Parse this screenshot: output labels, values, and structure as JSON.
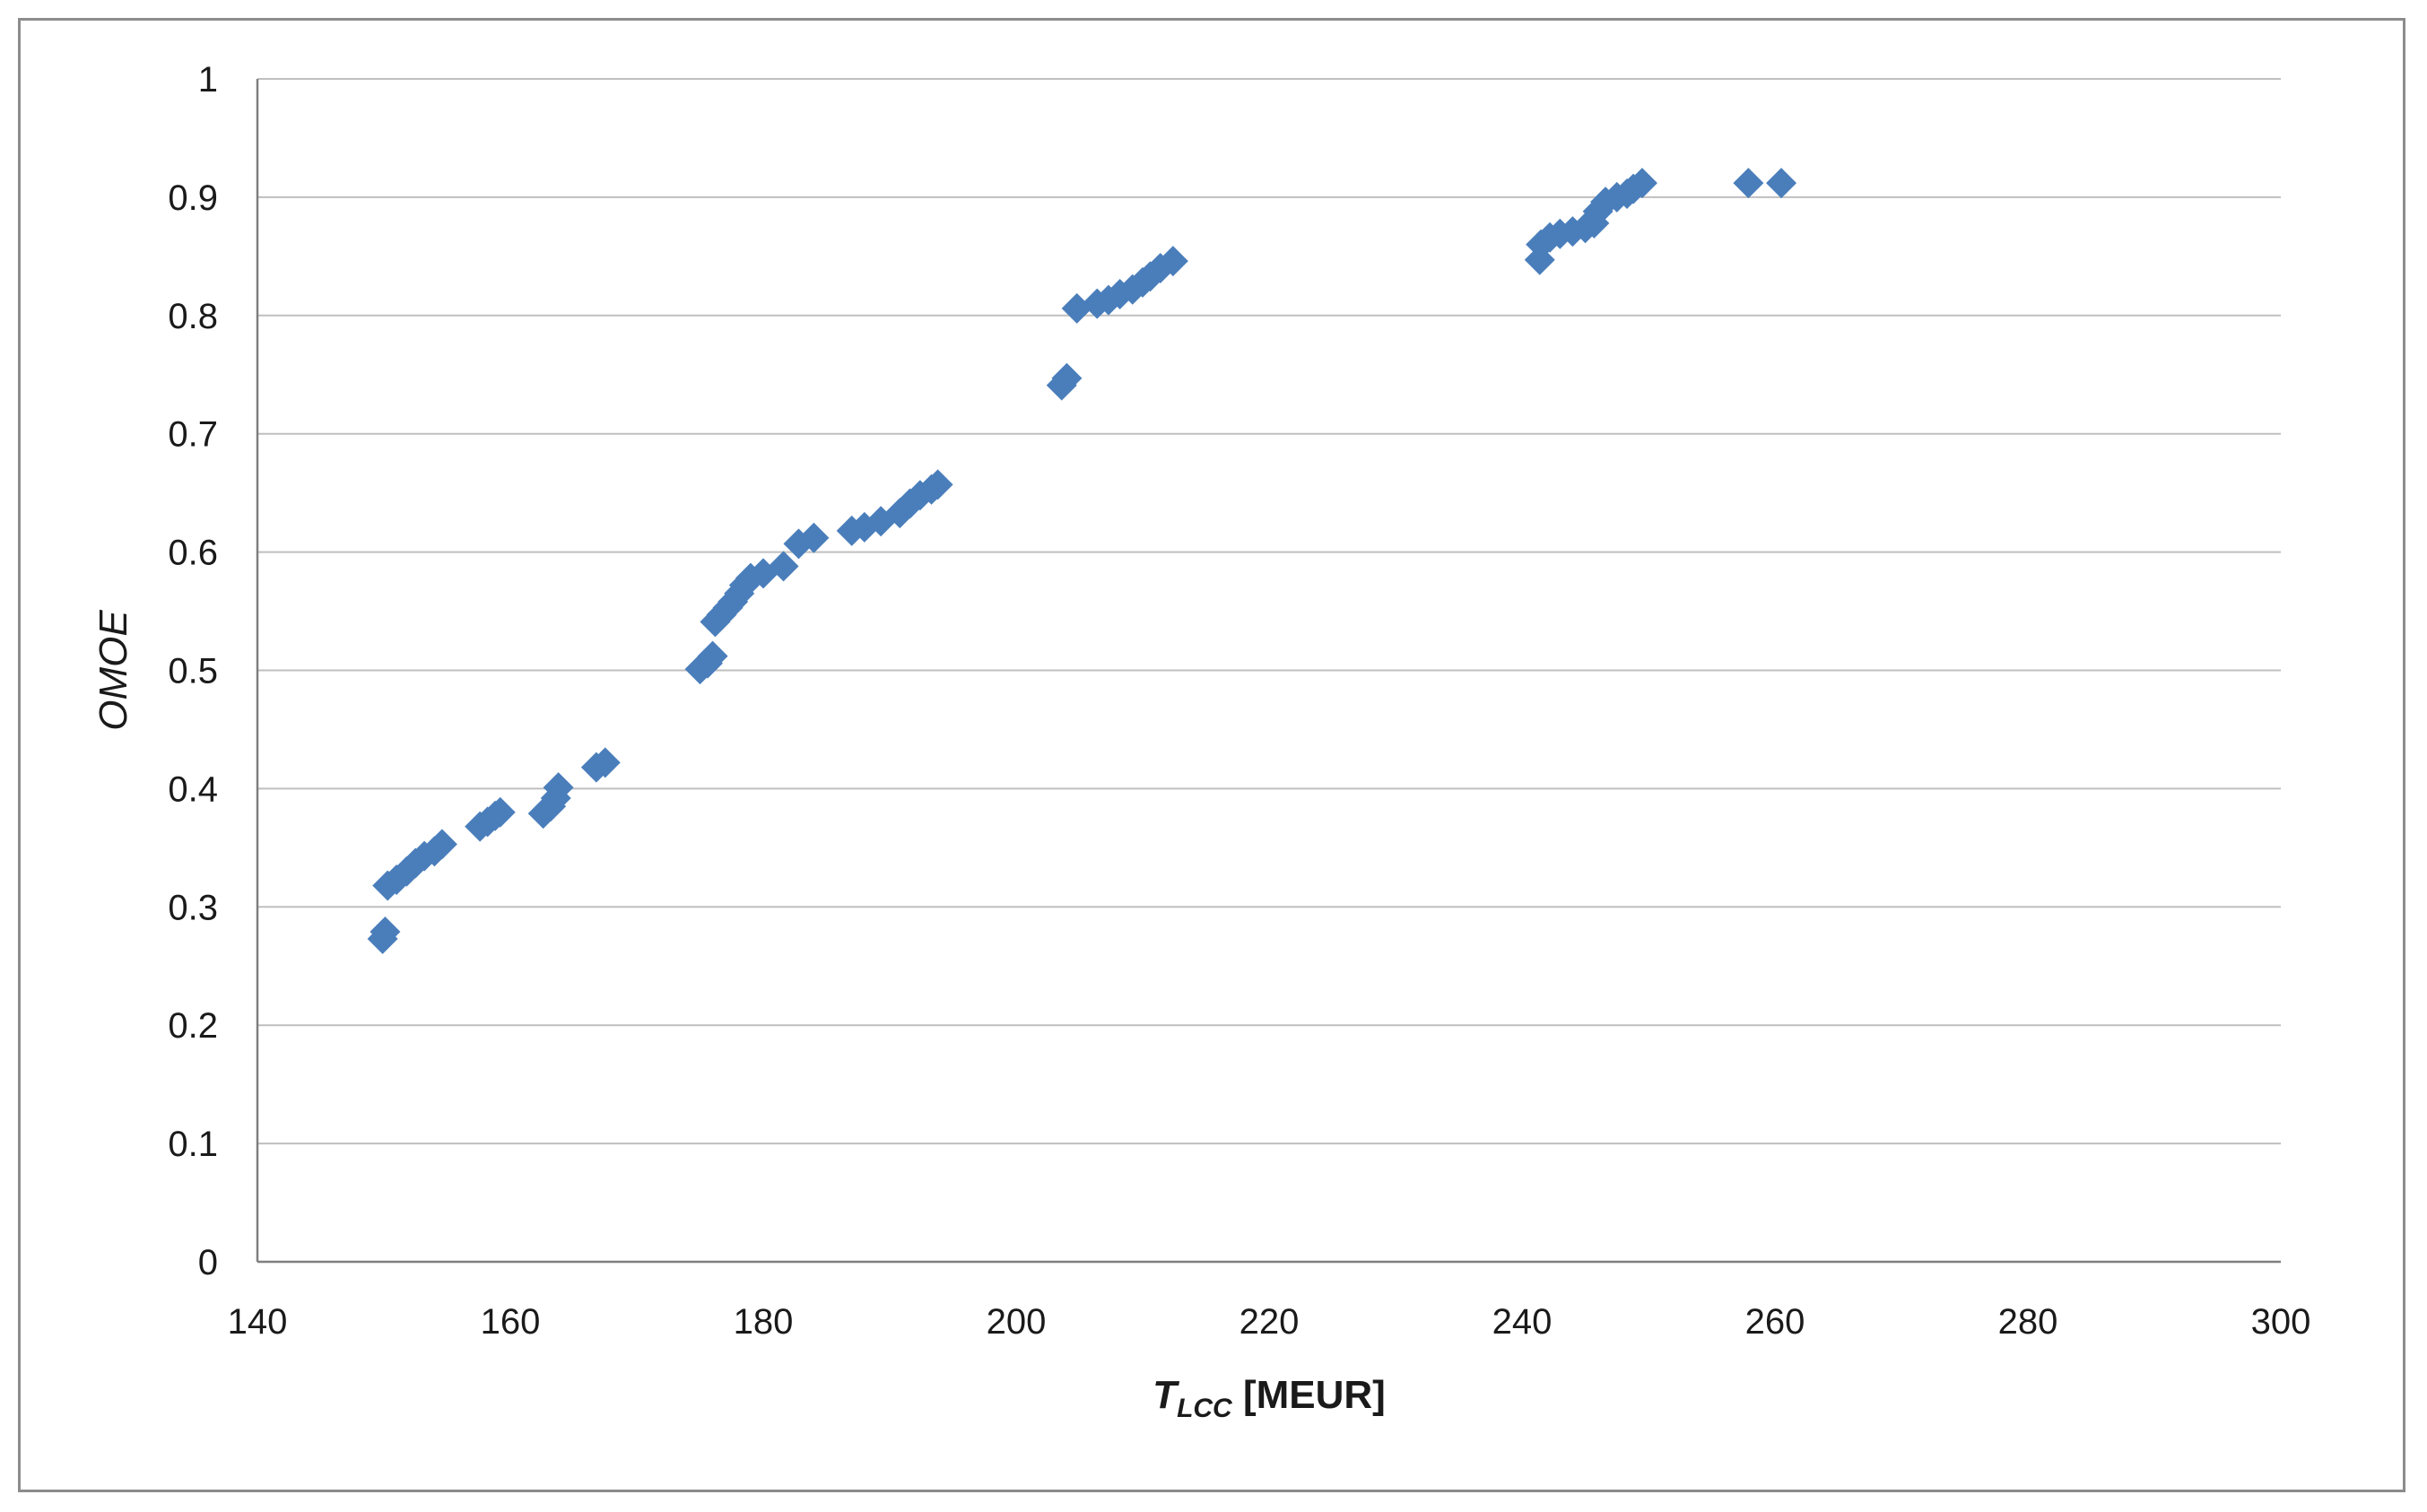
{
  "chart_data": {
    "type": "scatter",
    "title": "",
    "xlabel": {
      "main": "T",
      "sub": "LCC",
      "suffix": " [MEUR]"
    },
    "ylabel": "OMOE",
    "xlim": [
      140,
      300
    ],
    "ylim": [
      0,
      1
    ],
    "x_ticks": [
      140,
      160,
      180,
      200,
      220,
      240,
      260,
      280,
      300
    ],
    "y_ticks": [
      0,
      0.1,
      0.2,
      0.3,
      0.4,
      0.5,
      0.6,
      0.7,
      0.8,
      0.9,
      1
    ],
    "y_tick_labels": [
      "0",
      "0.1",
      "0.2",
      "0.3",
      "0.4",
      "0.5",
      "0.6",
      "0.7",
      "0.8",
      "0.9",
      "1"
    ],
    "grid": "horizontal",
    "legend": "none",
    "marker": "diamond",
    "color": "#4a7ebb",
    "series": [
      {
        "points": [
          [
            149.9,
            0.273
          ],
          [
            150.1,
            0.279
          ],
          [
            150.3,
            0.318
          ],
          [
            151.0,
            0.323
          ],
          [
            151.8,
            0.33
          ],
          [
            152.5,
            0.337
          ],
          [
            153.2,
            0.343
          ],
          [
            154.0,
            0.347
          ],
          [
            154.6,
            0.353
          ],
          [
            157.6,
            0.368
          ],
          [
            158.2,
            0.372
          ],
          [
            158.8,
            0.377
          ],
          [
            159.2,
            0.38
          ],
          [
            162.6,
            0.379
          ],
          [
            163.2,
            0.385
          ],
          [
            163.6,
            0.392
          ],
          [
            163.8,
            0.401
          ],
          [
            166.8,
            0.418
          ],
          [
            167.5,
            0.422
          ],
          [
            175.0,
            0.501
          ],
          [
            175.6,
            0.506
          ],
          [
            176.0,
            0.512
          ],
          [
            176.2,
            0.541
          ],
          [
            176.7,
            0.547
          ],
          [
            177.2,
            0.553
          ],
          [
            177.6,
            0.558
          ],
          [
            178.1,
            0.565
          ],
          [
            178.5,
            0.572
          ],
          [
            179.0,
            0.578
          ],
          [
            180.0,
            0.582
          ],
          [
            181.6,
            0.588
          ],
          [
            182.8,
            0.607
          ],
          [
            184.0,
            0.612
          ],
          [
            187.0,
            0.618
          ],
          [
            188.0,
            0.621
          ],
          [
            189.3,
            0.626
          ],
          [
            190.8,
            0.633
          ],
          [
            191.6,
            0.641
          ],
          [
            192.4,
            0.648
          ],
          [
            193.3,
            0.653
          ],
          [
            193.8,
            0.657
          ],
          [
            203.6,
            0.741
          ],
          [
            204.0,
            0.747
          ],
          [
            204.8,
            0.806
          ],
          [
            206.4,
            0.81
          ],
          [
            207.3,
            0.813
          ],
          [
            208.2,
            0.818
          ],
          [
            209.2,
            0.822
          ],
          [
            210.0,
            0.828
          ],
          [
            210.6,
            0.833
          ],
          [
            211.4,
            0.84
          ],
          [
            212.4,
            0.846
          ],
          [
            241.4,
            0.847
          ],
          [
            241.5,
            0.86
          ],
          [
            242.2,
            0.866
          ],
          [
            243.0,
            0.869
          ],
          [
            244.0,
            0.871
          ],
          [
            245.0,
            0.874
          ],
          [
            245.7,
            0.878
          ],
          [
            246.0,
            0.888
          ],
          [
            246.6,
            0.896
          ],
          [
            247.5,
            0.9
          ],
          [
            248.3,
            0.903
          ],
          [
            248.8,
            0.907
          ],
          [
            249.5,
            0.912
          ],
          [
            257.9,
            0.912
          ],
          [
            260.5,
            0.912
          ]
        ]
      }
    ]
  }
}
